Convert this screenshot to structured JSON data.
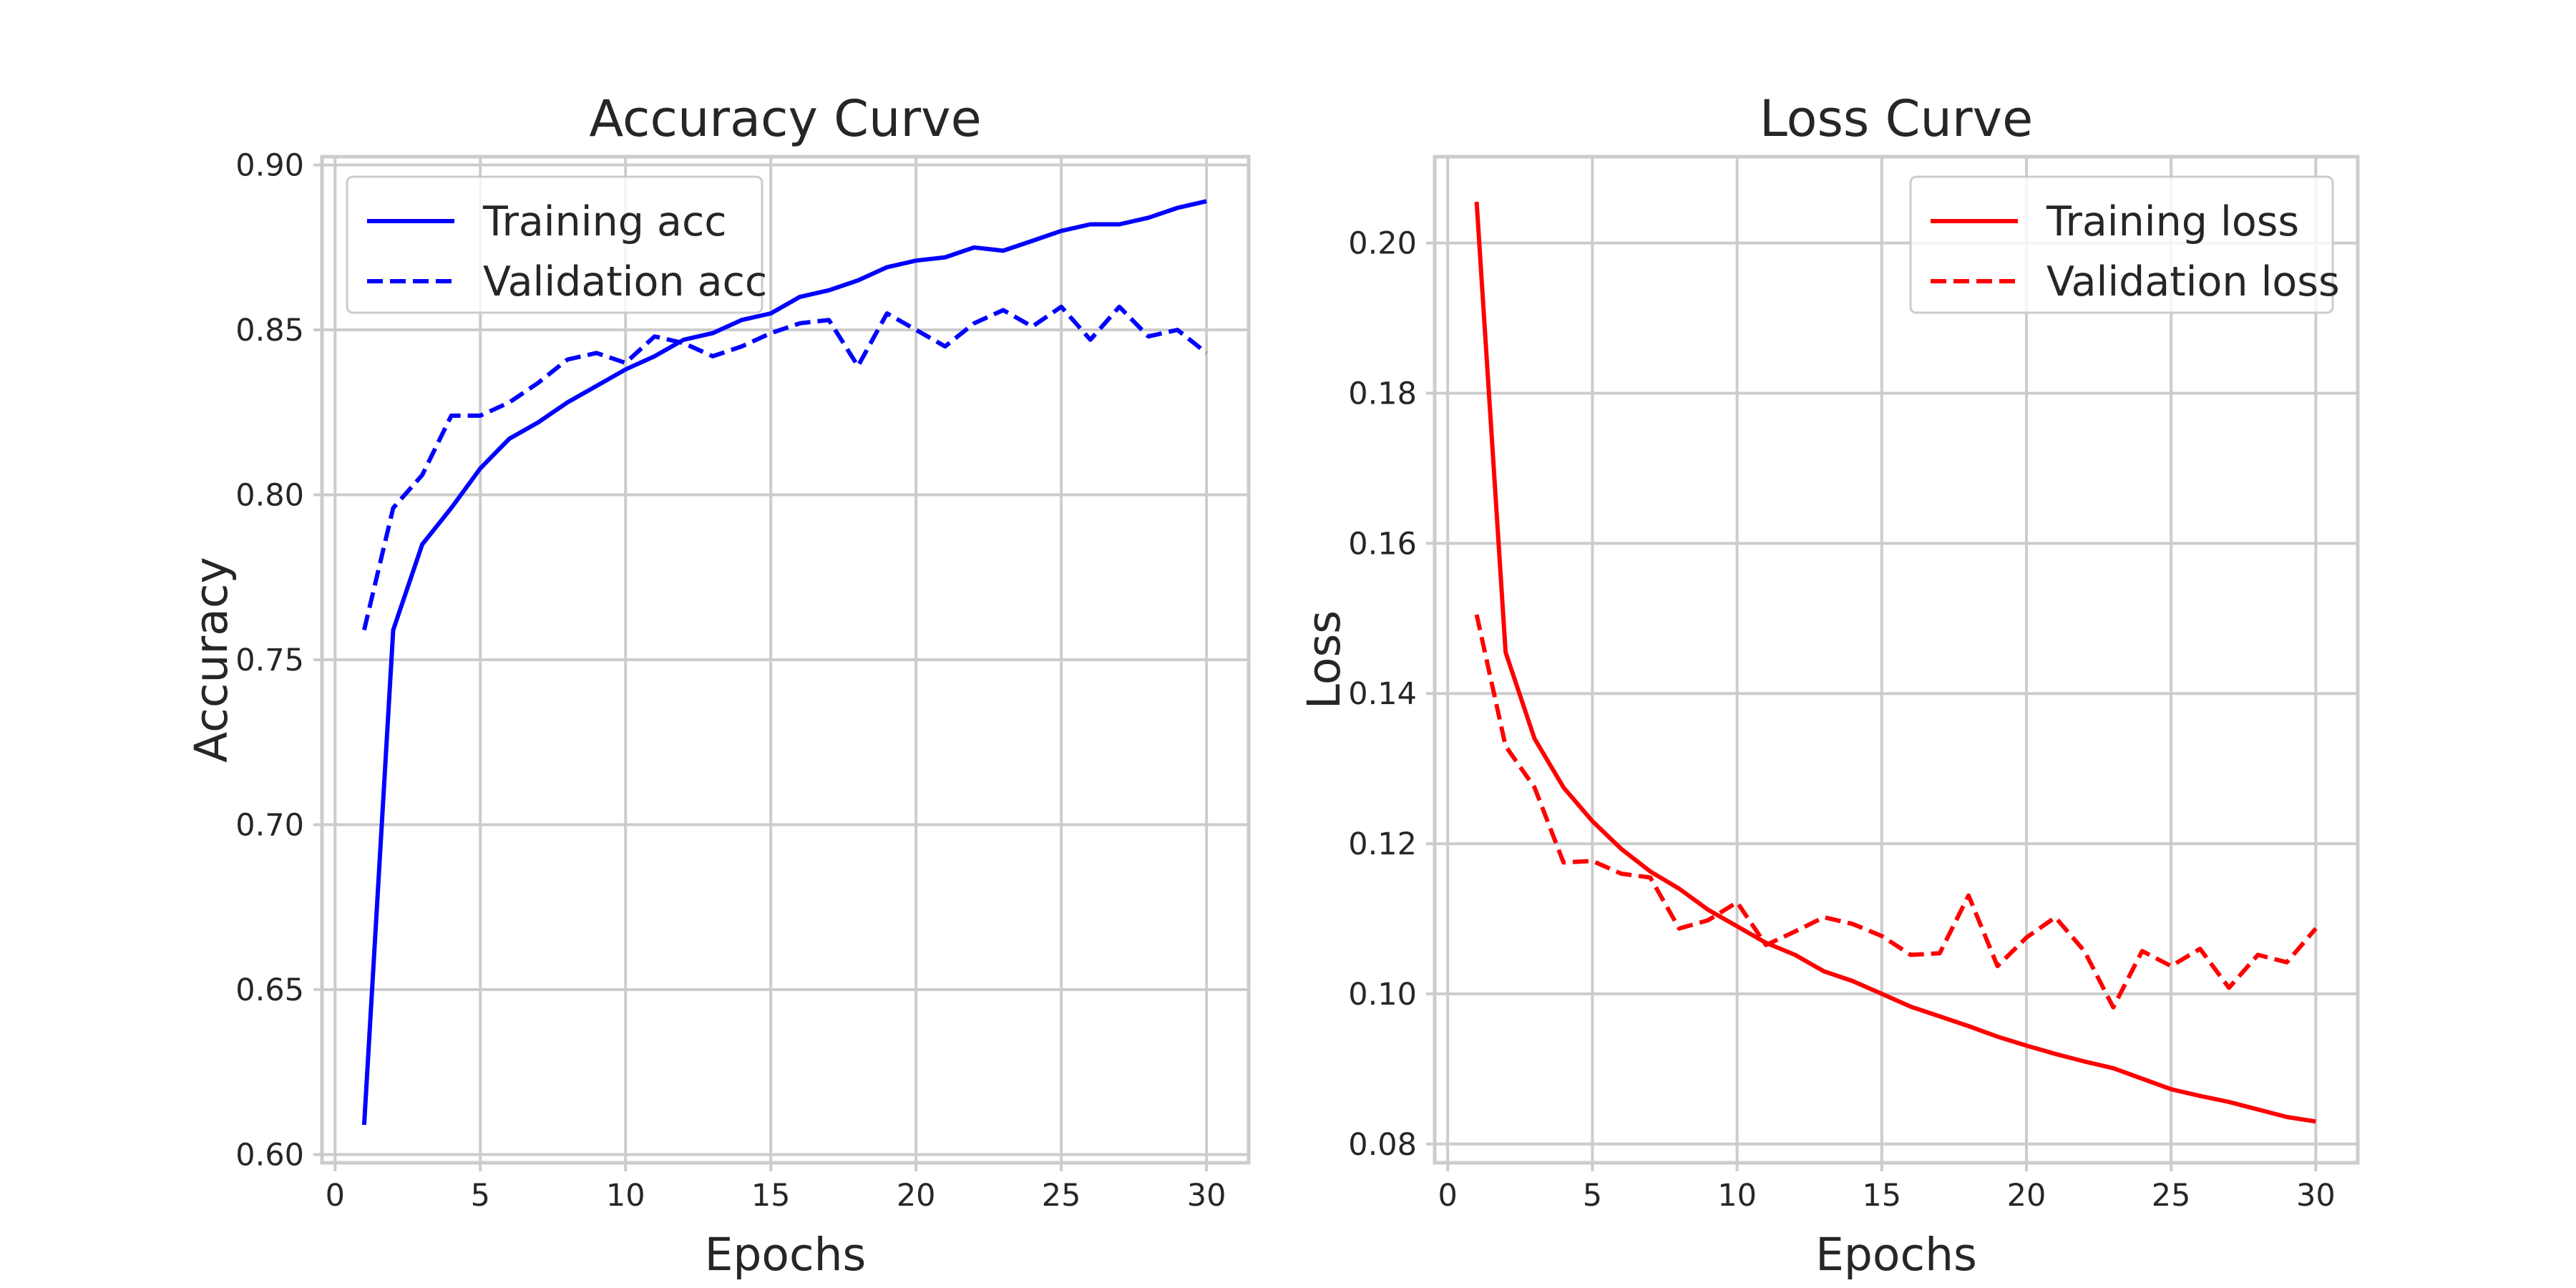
{
  "chart_data": [
    {
      "type": "line",
      "title": "Accuracy Curve",
      "xlabel": "Epochs",
      "ylabel": "Accuracy",
      "xlim": [
        -0.45,
        31.45
      ],
      "ylim": [
        0.5975,
        0.9025
      ],
      "xticks": [
        0,
        5,
        10,
        15,
        20,
        25,
        30
      ],
      "xtick_labels": [
        "0",
        "5",
        "10",
        "15",
        "20",
        "25",
        "30"
      ],
      "yticks": [
        0.6,
        0.65,
        0.7,
        0.75,
        0.8,
        0.85,
        0.9
      ],
      "ytick_labels": [
        "0.60",
        "0.65",
        "0.70",
        "0.75",
        "0.80",
        "0.85",
        "0.90"
      ],
      "grid": true,
      "legend_position": "top-left",
      "x": [
        1,
        2,
        3,
        4,
        5,
        6,
        7,
        8,
        9,
        10,
        11,
        12,
        13,
        14,
        15,
        16,
        17,
        18,
        19,
        20,
        21,
        22,
        23,
        24,
        25,
        26,
        27,
        28,
        29,
        30
      ],
      "series": [
        {
          "name": "Training acc",
          "color": "#0000ff",
          "dash": "solid",
          "values": [
            0.609,
            0.759,
            0.785,
            0.796,
            0.808,
            0.817,
            0.822,
            0.828,
            0.833,
            0.838,
            0.842,
            0.847,
            0.849,
            0.853,
            0.855,
            0.86,
            0.862,
            0.865,
            0.869,
            0.871,
            0.872,
            0.875,
            0.874,
            0.877,
            0.88,
            0.882,
            0.882,
            0.884,
            0.887,
            0.889
          ]
        },
        {
          "name": "Validation acc",
          "color": "#0000ff",
          "dash": "dashed",
          "values": [
            0.759,
            0.796,
            0.806,
            0.824,
            0.824,
            0.828,
            0.834,
            0.841,
            0.843,
            0.84,
            0.848,
            0.846,
            0.842,
            0.845,
            0.849,
            0.852,
            0.853,
            0.839,
            0.855,
            0.85,
            0.845,
            0.852,
            0.856,
            0.851,
            0.857,
            0.847,
            0.857,
            0.848,
            0.85,
            0.843
          ]
        }
      ]
    },
    {
      "type": "line",
      "title": "Loss Curve",
      "xlabel": "Epochs",
      "ylabel": "Loss",
      "xlim": [
        -0.45,
        31.45
      ],
      "ylim": [
        0.0775,
        0.2115
      ],
      "xticks": [
        0,
        5,
        10,
        15,
        20,
        25,
        30
      ],
      "xtick_labels": [
        "0",
        "5",
        "10",
        "15",
        "20",
        "25",
        "30"
      ],
      "yticks": [
        0.08,
        0.1,
        0.12,
        0.14,
        0.16,
        0.18,
        0.2
      ],
      "ytick_labels": [
        "0.08",
        "0.10",
        "0.12",
        "0.14",
        "0.16",
        "0.18",
        "0.20"
      ],
      "grid": true,
      "legend_position": "top-right",
      "x": [
        1,
        2,
        3,
        4,
        5,
        6,
        7,
        8,
        9,
        10,
        11,
        12,
        13,
        14,
        15,
        16,
        17,
        18,
        19,
        20,
        21,
        22,
        23,
        24,
        25,
        26,
        27,
        28,
        29,
        30
      ],
      "series": [
        {
          "name": "Training loss",
          "color": "#ff0000",
          "dash": "solid",
          "values": [
            0.2055,
            0.1455,
            0.134,
            0.1275,
            0.123,
            0.1193,
            0.1163,
            0.114,
            0.1112,
            0.109,
            0.1068,
            0.1052,
            0.103,
            0.1017,
            0.1,
            0.0983,
            0.097,
            0.0957,
            0.0943,
            0.0931,
            0.092,
            0.091,
            0.0901,
            0.0887,
            0.0873,
            0.0864,
            0.0856,
            0.0846,
            0.0836,
            0.083
          ]
        },
        {
          "name": "Validation loss",
          "color": "#ff0000",
          "dash": "dashed",
          "values": [
            0.1505,
            0.133,
            0.1275,
            0.1175,
            0.1177,
            0.116,
            0.1155,
            0.1087,
            0.1098,
            0.1122,
            0.1065,
            0.1083,
            0.1102,
            0.1093,
            0.1077,
            0.1052,
            0.1054,
            0.1131,
            0.1037,
            0.1075,
            0.1102,
            0.1057,
            0.0982,
            0.1057,
            0.1037,
            0.106,
            0.1008,
            0.1052,
            0.1042,
            0.1087
          ]
        }
      ]
    }
  ]
}
